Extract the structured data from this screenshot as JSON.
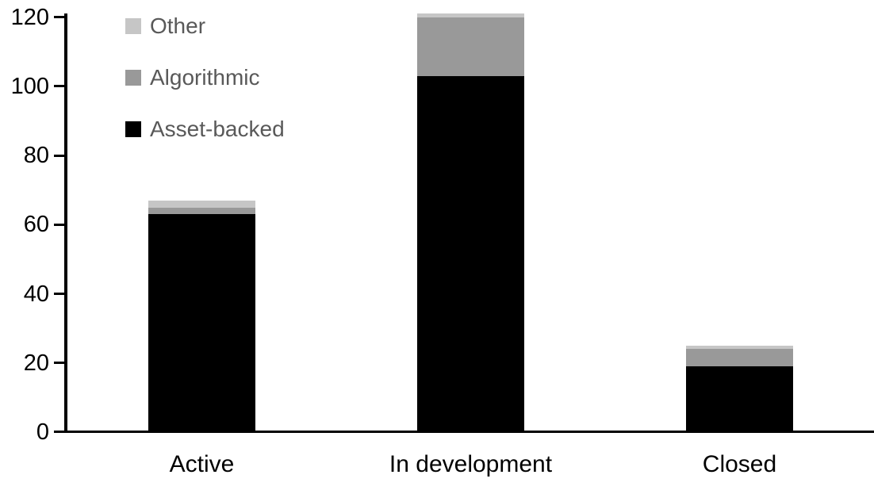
{
  "chart_data": {
    "type": "bar",
    "stacked": true,
    "title": "",
    "xlabel": "",
    "ylabel": "",
    "categories": [
      "Active",
      "In development",
      "Closed"
    ],
    "series": [
      {
        "name": "Asset-backed",
        "color": "#000000",
        "values": [
          63,
          103,
          19
        ]
      },
      {
        "name": "Algorithmic",
        "color": "#999999",
        "values": [
          2,
          17,
          5
        ]
      },
      {
        "name": "Other",
        "color": "#c6c6c6",
        "values": [
          2,
          1,
          1
        ]
      }
    ],
    "totals": [
      67,
      121,
      25
    ],
    "ylim": [
      0,
      120
    ],
    "y_ticks": [
      0,
      20,
      40,
      60,
      80,
      100,
      120
    ],
    "grid": false,
    "legend": {
      "position": "top-left",
      "order": [
        "Other",
        "Algorithmic",
        "Asset-backed"
      ],
      "text_color": "#595959"
    },
    "axis_color": "#000000",
    "background_color": "#ffffff"
  }
}
